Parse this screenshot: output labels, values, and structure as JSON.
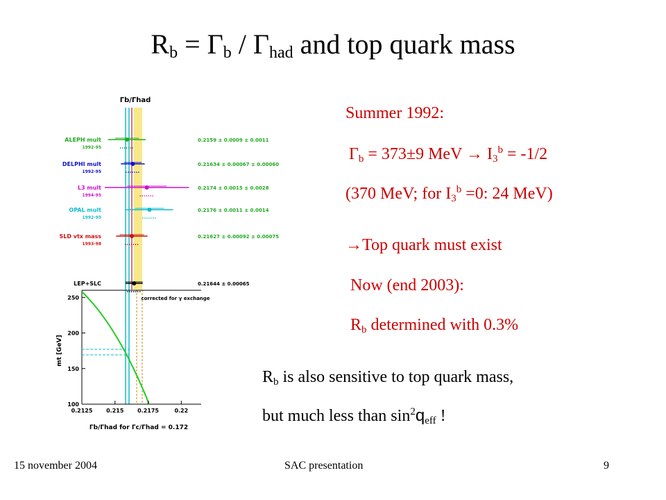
{
  "title": [
    "R",
    "b",
    " = Γ",
    "b",
    " / Γ",
    "had",
    "  and top quark mass"
  ],
  "summer": "Summer 1992:",
  "gamma_line": [
    "Γ",
    "b",
    " = 373±9 MeV  → I",
    "3",
    "b",
    " = -1/2"
  ],
  "paren_line": [
    "(370 MeV; for I",
    "3",
    "b",
    " =0: 24 MeV)"
  ],
  "top_exist": "→Top quark must exist",
  "now": "Now (end 2003):",
  "determined": [
    "R",
    "b",
    " determined with 0.3%"
  ],
  "sensitive": [
    "R",
    "b",
    " is also sensitive to top quark mass,"
  ],
  "much_less": [
    "but much less than sin",
    "2",
    "q",
    "eff",
    " !"
  ],
  "footer": {
    "date": "15 november 2004",
    "center": "SAC presentation",
    "page": "9"
  },
  "figure": {
    "top_label": "Γb/Γhad",
    "measurements": [
      {
        "name": "ALEPH mult",
        "period": "1992-95",
        "label": "0.2159 ± 0.0009 ± 0.0011",
        "value": 0.2159,
        "stat": 0.0009,
        "syst": 0.0011,
        "color": "#22aa22"
      },
      {
        "name": "DELPHI mult",
        "period": "1992-95",
        "label": "0.21634 ± 0.00067 ± 0.00060",
        "value": 0.21634,
        "stat": 0.00067,
        "syst": 0.0006,
        "color": "#1111cc"
      },
      {
        "name": "L3 mult",
        "period": "1994-95",
        "label": "0.2174 ± 0.0015 ± 0.0028",
        "value": 0.2174,
        "stat": 0.0015,
        "syst": 0.0028,
        "color": "#cc11cc"
      },
      {
        "name": "OPAL mult",
        "period": "1992-95",
        "label": "0.2176 ± 0.0011 ± 0.0014",
        "value": 0.2176,
        "stat": 0.0011,
        "syst": 0.0014,
        "color": "#11bbcc"
      },
      {
        "name": "SLD vtx mass",
        "period": "1993-98",
        "label": "0.21627 ± 0.00092 ± 0.00075",
        "value": 0.21627,
        "stat": 0.00092,
        "syst": 0.00075,
        "color": "#cc1111"
      },
      {
        "name": "LEP+SLC",
        "label": "0.21644 ± 0.00065",
        "value": 0.21644,
        "stat": 0.00065,
        "color": "#000000"
      }
    ],
    "correction": "corrected for γ exchange",
    "xlim": [
      0.2125,
      0.2215
    ],
    "xticks": [
      0.2125,
      0.215,
      0.2175,
      0.22
    ],
    "ylim": [
      100,
      260
    ],
    "yticks": [
      100,
      150,
      200,
      250
    ],
    "ylabel": "mt [GeV]",
    "xlabel": "Γb/Γhad  for Γc/Γhad = 0.172"
  }
}
